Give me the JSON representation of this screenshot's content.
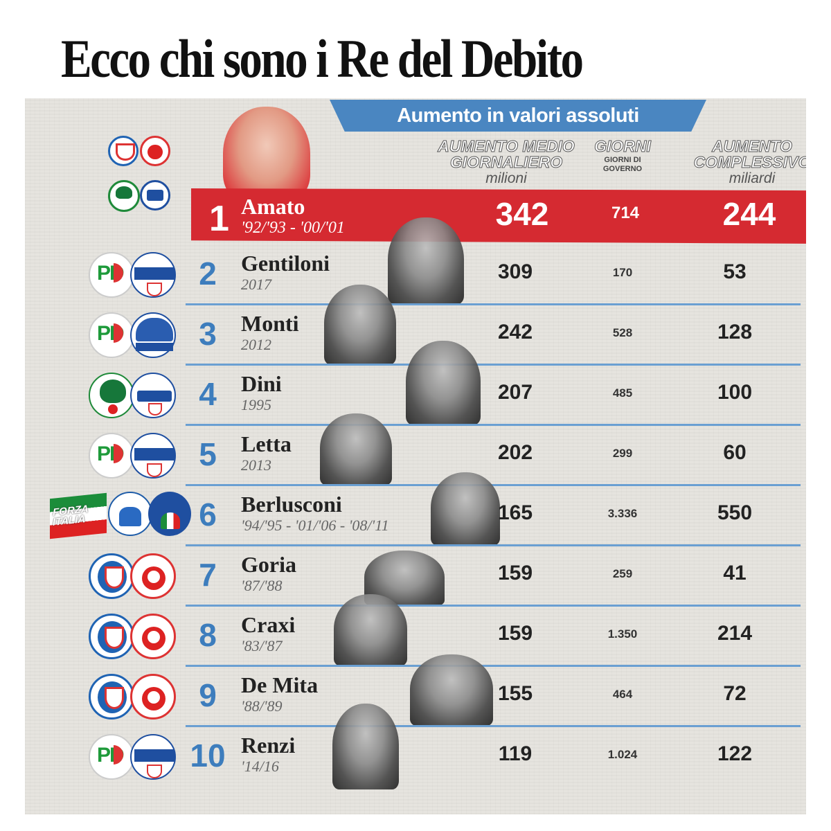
{
  "title": "Ecco chi sono i Re del Debito",
  "banner": "Aumento in valori assoluti",
  "headers": {
    "daily_line1": "AUMENTO MEDIO",
    "daily_line2": "GIORNALIERO",
    "daily_unit": "milioni",
    "days_line1": "GIORNI",
    "days_sub": "GIORNI DI GOVERNO",
    "total_line1": "AUMENTO",
    "total_line2": "COMPLESSIVO",
    "total_unit": "miliardi"
  },
  "colors": {
    "accent_blue": "#4a86c1",
    "accent_red": "#d52a31",
    "rank_blue": "#3d7dbd",
    "panel_bg": "#e6e4df"
  },
  "leader": {
    "rank": "1",
    "name": "Amato",
    "years": "'92/'93 - '00/'01",
    "daily": "342",
    "days": "714",
    "total": "244",
    "logos": [
      "dc-icon",
      "psi-icon",
      "pds-icon",
      "popolari-icon"
    ]
  },
  "rows": [
    {
      "rank": "2",
      "name": "Gentiloni",
      "years": "2017",
      "daily": "309",
      "days": "170",
      "total": "53",
      "logos": [
        "pd-icon",
        "ncd-icon"
      ]
    },
    {
      "rank": "3",
      "name": "Monti",
      "years": "2012",
      "daily": "242",
      "days": "528",
      "total": "128",
      "logos": [
        "pd-icon",
        "pdl-icon"
      ]
    },
    {
      "rank": "4",
      "name": "Dini",
      "years": "1995",
      "daily": "207",
      "days": "485",
      "total": "100",
      "logos": [
        "pds-icon",
        "popolari-icon"
      ]
    },
    {
      "rank": "5",
      "name": "Letta",
      "years": "2013",
      "daily": "202",
      "days": "299",
      "total": "60",
      "logos": [
        "pd-icon",
        "ncd-icon"
      ]
    },
    {
      "rank": "6",
      "name": "Berlusconi",
      "years": "'94/'95 - '01/'06 - '08/'11",
      "daily": "165",
      "days": "3.336",
      "total": "550",
      "logos": [
        "forza-italia-icon",
        "lega-nord-icon",
        "alleanza-nazionale-icon"
      ]
    },
    {
      "rank": "7",
      "name": "Goria",
      "years": "'87/'88",
      "daily": "159",
      "days": "259",
      "total": "41",
      "logos": [
        "dc-icon",
        "psi-icon"
      ]
    },
    {
      "rank": "8",
      "name": "Craxi",
      "years": "'83/'87",
      "daily": "159",
      "days": "1.350",
      "total": "214",
      "logos": [
        "dc-icon",
        "psi-icon"
      ]
    },
    {
      "rank": "9",
      "name": "De Mita",
      "years": "'88/'89",
      "daily": "155",
      "days": "464",
      "total": "72",
      "logos": [
        "dc-icon",
        "psi-icon"
      ]
    },
    {
      "rank": "10",
      "name": "Renzi",
      "years": "'14/16",
      "daily": "119",
      "days": "1.024",
      "total": "122",
      "logos": [
        "pd-icon",
        "ncd-icon"
      ]
    }
  ]
}
